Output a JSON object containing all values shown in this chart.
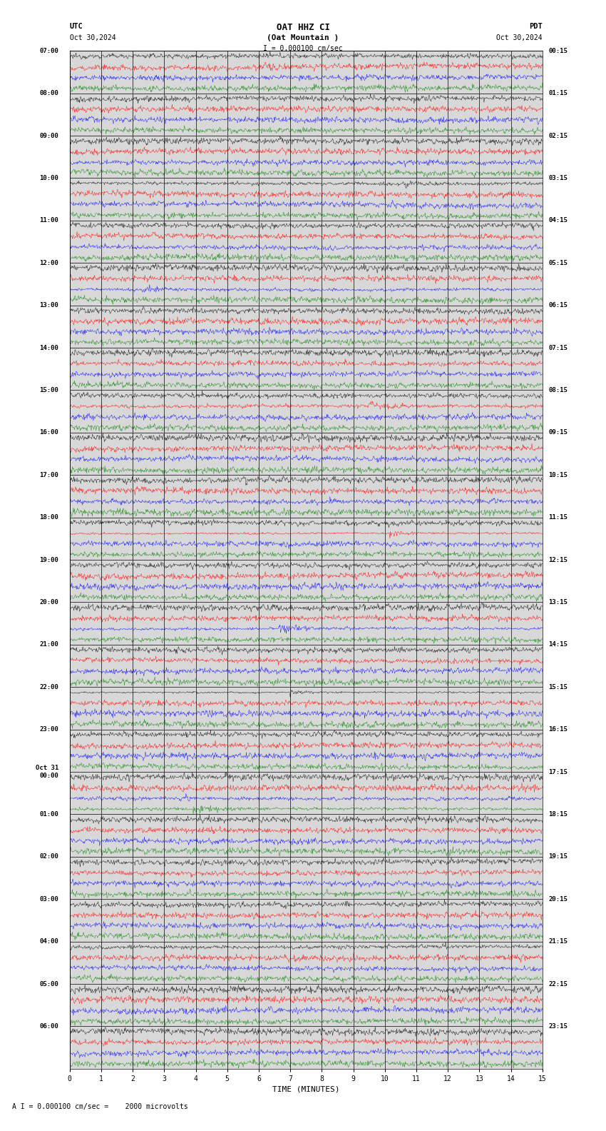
{
  "title_line1": "OAT HHZ CI",
  "title_line2": "(Oat Mountain )",
  "scale_label": "I = 0.000100 cm/sec",
  "utc_label": "UTC",
  "pdt_label": "PDT",
  "date_left": "Oct 30,2024",
  "date_right": "Oct 30,2024",
  "bottom_label": "A I = 0.000100 cm/sec =    2000 microvolts",
  "xlabel": "TIME (MINUTES)",
  "left_times_utc": [
    "07:00",
    "08:00",
    "09:00",
    "10:00",
    "11:00",
    "12:00",
    "13:00",
    "14:00",
    "15:00",
    "16:00",
    "17:00",
    "18:00",
    "19:00",
    "20:00",
    "21:00",
    "22:00",
    "23:00",
    "Oct 31\n00:00",
    "01:00",
    "02:00",
    "03:00",
    "04:00",
    "05:00",
    "06:00"
  ],
  "right_times_pdt": [
    "00:15",
    "01:15",
    "02:15",
    "03:15",
    "04:15",
    "05:15",
    "06:15",
    "07:15",
    "08:15",
    "09:15",
    "10:15",
    "11:15",
    "12:15",
    "13:15",
    "14:15",
    "15:15",
    "16:15",
    "17:15",
    "18:15",
    "19:15",
    "20:15",
    "21:15",
    "22:15",
    "23:15"
  ],
  "n_rows": 24,
  "n_traces_per_row": 4,
  "minutes_per_row": 15,
  "colors": [
    "black",
    "red",
    "blue",
    "green"
  ],
  "bg_color": "white",
  "fig_width": 8.5,
  "fig_height": 15.84,
  "dpi": 100,
  "plot_bg": "#d8d8d8",
  "xticks": [
    0,
    1,
    2,
    3,
    4,
    5,
    6,
    7,
    8,
    9,
    10,
    11,
    12,
    13,
    14,
    15
  ],
  "xlim": [
    0,
    15
  ],
  "samples_per_minute": 60,
  "trace_amplitude": 0.115,
  "lw": 0.3
}
